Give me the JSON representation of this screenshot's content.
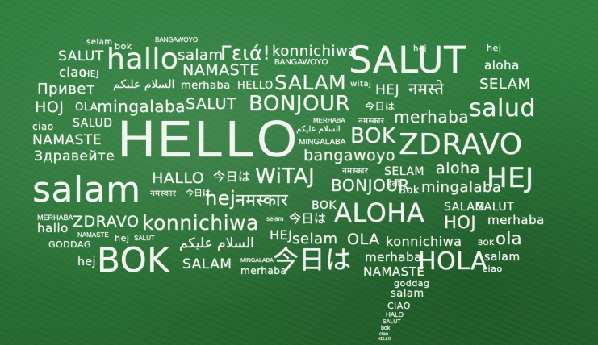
{
  "image": {
    "description_words": {
      "w1": "selam",
      "w2": "bok",
      "w3": "BANGAWOYO",
      "w4": "SALUT",
      "w5": "hallo",
      "w6": "salam",
      "w7": "Γειά!",
      "w8": "konnichiwa",
      "w9": "SALUT",
      "w10": "hej",
      "w11": "hej",
      "w12": "aloha",
      "w13": "ciao",
      "w14": "HEJ",
      "w15": "BANGAWOYO",
      "w16": "NAMASTE",
      "w17": "Привет",
      "w18": "السلام عليكم",
      "w19": "merhaba",
      "w20": "HELLO",
      "w21": "SALAM",
      "w22": "witaj",
      "w23": "HEJ",
      "w24": "नमस्ते",
      "w25": "SELAM",
      "w26": "HOJ",
      "w27": "OLA",
      "w28": "mingalaba",
      "w29": "SALUT",
      "w30": "BONJOUR",
      "w31": "今日は",
      "w32": "salud",
      "w33": "ciao",
      "w34": "SALUD",
      "w35": "merhaba",
      "w36": "MERHABA",
      "w37": "नमस्कार",
      "w38": "HELLO",
      "w39": "السلام عليكم",
      "w40": "BOK",
      "w41": "NAMASTE",
      "w42": "MINGALABA",
      "w43": "ZDRAVO",
      "w44": "Здравейте",
      "w45": "bangawoyo",
      "w46": "salam",
      "w47": "HALLO",
      "w48": "今日は",
      "w49": "WiTAJ",
      "w50": "नमस्कार",
      "w51": "SELAM",
      "w52": "aloha",
      "w53": "HEJ",
      "w54": "नमस्कार",
      "w55": "今日は",
      "w56": "BONJOUR",
      "w57": "हेलो",
      "w58": "Bok",
      "w59": "mingalaba",
      "w60": "hej",
      "w61": "नमस्कार",
      "w62": "BOK",
      "w63": "MERHABA",
      "w64": "SALAM",
      "w65": "今日は",
      "w66": "ALOHA",
      "w67": "selam",
      "w68": "SALUT",
      "w69": "ZDRAVO",
      "w70": "konnichiwa",
      "w71": "HOJ",
      "w72": "merhaba",
      "w73": "hallo",
      "w74": "NAMASTE",
      "w75": "HEJ",
      "w76": "selam",
      "w77": "OLA",
      "w78": "konnichiwa",
      "w79": "BOK",
      "w80": "ola",
      "w81": "GODDAG",
      "w82": "hej",
      "w83": "SALUT",
      "w84": "السلام عليكم",
      "w85": "MINGALABA",
      "w86": "hej",
      "w87": "BOK",
      "w88": "SALAM",
      "w89": "merhaba",
      "w90": "今日は",
      "w91": "merhaba",
      "w92": "NAMASTE",
      "w93": "HOLA",
      "w94": "salam",
      "w95": "ciao",
      "w96": "goddag",
      "w97": "salam",
      "w98": "CiAO",
      "w99": "HALO",
      "w100": "SALUT",
      "w101": "bok",
      "w102": "ciao",
      "w103": "HELLO"
    }
  }
}
